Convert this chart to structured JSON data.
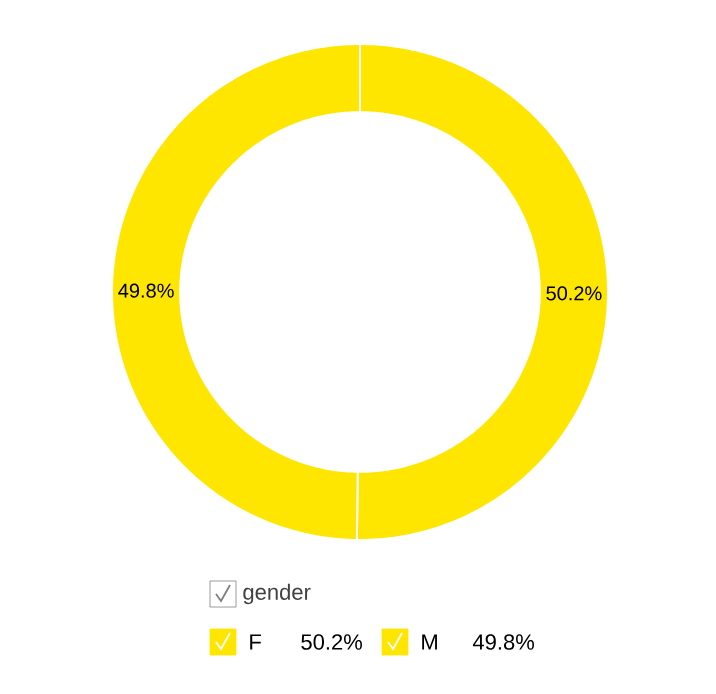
{
  "chart_data": {
    "type": "donut",
    "categories": [
      "F",
      "M"
    ],
    "values": [
      50.2,
      49.8
    ],
    "colors": [
      "#ffe600",
      "#ffe600"
    ],
    "value_labels": [
      "50.2%",
      "49.8%"
    ],
    "legend_title": "gender",
    "legend": "bottom"
  }
}
